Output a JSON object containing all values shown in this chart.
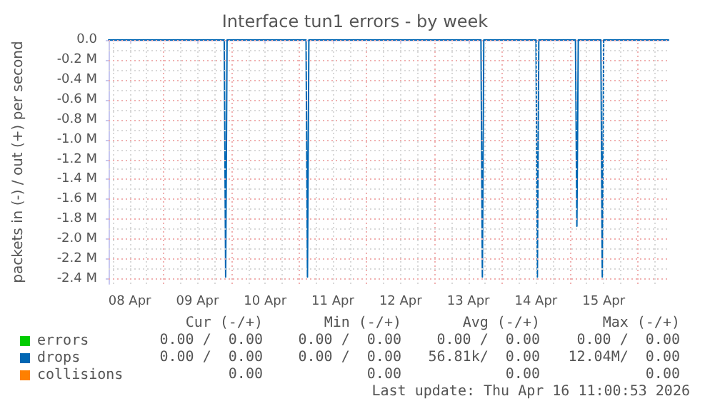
{
  "chart_data": {
    "type": "line",
    "title": "Interface tun1 errors - by week",
    "ylabel": "packets in (-) / out (+) per second",
    "xlim": [
      "2026-04-08T04:30",
      "2026-04-16T11:00"
    ],
    "ylim": [
      -2450000,
      0
    ],
    "xticks": [
      {
        "value": "2026-04-08T06:00",
        "label": null
      },
      {
        "value": "2026-04-08T12:00",
        "label": "08 Apr"
      },
      {
        "value": "2026-04-08T18:00",
        "label": null
      },
      {
        "value": "2026-04-09T00:00",
        "label": null
      },
      {
        "value": "2026-04-09T06:00",
        "label": null
      },
      {
        "value": "2026-04-09T12:00",
        "label": "09 Apr"
      },
      {
        "value": "2026-04-09T18:00",
        "label": null
      },
      {
        "value": "2026-04-10T00:00",
        "label": null
      },
      {
        "value": "2026-04-10T06:00",
        "label": null
      },
      {
        "value": "2026-04-10T12:00",
        "label": "10 Apr"
      },
      {
        "value": "2026-04-10T18:00",
        "label": null
      },
      {
        "value": "2026-04-11T00:00",
        "label": null
      },
      {
        "value": "2026-04-11T06:00",
        "label": null
      },
      {
        "value": "2026-04-11T12:00",
        "label": "11 Apr"
      },
      {
        "value": "2026-04-11T18:00",
        "label": null
      },
      {
        "value": "2026-04-12T00:00",
        "label": null
      },
      {
        "value": "2026-04-12T06:00",
        "label": null
      },
      {
        "value": "2026-04-12T12:00",
        "label": "12 Apr"
      },
      {
        "value": "2026-04-12T18:00",
        "label": null
      },
      {
        "value": "2026-04-13T00:00",
        "label": null
      },
      {
        "value": "2026-04-13T06:00",
        "label": null
      },
      {
        "value": "2026-04-13T12:00",
        "label": "13 Apr"
      },
      {
        "value": "2026-04-13T18:00",
        "label": null
      },
      {
        "value": "2026-04-14T00:00",
        "label": null
      },
      {
        "value": "2026-04-14T06:00",
        "label": null
      },
      {
        "value": "2026-04-14T12:00",
        "label": "14 Apr"
      },
      {
        "value": "2026-04-14T18:00",
        "label": null
      },
      {
        "value": "2026-04-15T00:00",
        "label": null
      },
      {
        "value": "2026-04-15T06:00",
        "label": null
      },
      {
        "value": "2026-04-15T12:00",
        "label": "15 Apr"
      },
      {
        "value": "2026-04-15T18:00",
        "label": null
      },
      {
        "value": "2026-04-16T00:00",
        "label": null
      },
      {
        "value": "2026-04-16T06:00",
        "label": null
      }
    ],
    "yticks": [
      {
        "value": 0,
        "label": "0.0"
      },
      {
        "value": -100000,
        "label": null
      },
      {
        "value": -200000,
        "label": "-0.2 M"
      },
      {
        "value": -300000,
        "label": null
      },
      {
        "value": -400000,
        "label": "-0.4 M"
      },
      {
        "value": -500000,
        "label": null
      },
      {
        "value": -600000,
        "label": "-0.6 M"
      },
      {
        "value": -700000,
        "label": null
      },
      {
        "value": -800000,
        "label": "-0.8 M"
      },
      {
        "value": -900000,
        "label": null
      },
      {
        "value": -1000000,
        "label": "-1.0 M"
      },
      {
        "value": -1100000,
        "label": null
      },
      {
        "value": -1200000,
        "label": "-1.2 M"
      },
      {
        "value": -1300000,
        "label": null
      },
      {
        "value": -1400000,
        "label": "-1.4 M"
      },
      {
        "value": -1500000,
        "label": null
      },
      {
        "value": -1600000,
        "label": "-1.6 M"
      },
      {
        "value": -1700000,
        "label": null
      },
      {
        "value": -1800000,
        "label": "-1.8 M"
      },
      {
        "value": -1900000,
        "label": null
      },
      {
        "value": -2000000,
        "label": "-2.0 M"
      },
      {
        "value": -2100000,
        "label": null
      },
      {
        "value": -2200000,
        "label": "-2.2 M"
      },
      {
        "value": -2300000,
        "label": null
      },
      {
        "value": -2400000,
        "label": "-2.4 M"
      }
    ],
    "grid": true,
    "legend": "bottom left",
    "marker": "none",
    "line_style": "solid",
    "series": [
      {
        "name": "errors",
        "color": "#00cc00"
      },
      {
        "name": "drops",
        "color": "#0066b3",
        "x": [
          "2026-04-08T04:30",
          "2026-04-09T21:30",
          "2026-04-09T22:00",
          "2026-04-09T22:30",
          "2026-04-11T02:30",
          "2026-04-11T03:00",
          "2026-04-11T03:30",
          "2026-04-13T16:30",
          "2026-04-13T17:00",
          "2026-04-13T17:30",
          "2026-04-14T12:00",
          "2026-04-14T12:30",
          "2026-04-14T13:00",
          "2026-04-15T02:00",
          "2026-04-15T02:30",
          "2026-04-15T03:00",
          "2026-04-15T11:00",
          "2026-04-15T11:30",
          "2026-04-15T12:00",
          "2026-04-16T11:00"
        ],
        "values": [
          0,
          0,
          -2380000,
          0,
          0,
          -2380000,
          0,
          0,
          -2380000,
          0,
          0,
          -2380000,
          0,
          0,
          -1870000,
          0,
          0,
          -2380000,
          0,
          0
        ]
      },
      {
        "name": "collisions",
        "color": "#ff8000"
      }
    ],
    "annotations": [
      "Cur (-/+)",
      "Min (-/+)",
      "Avg (-/+)",
      "Max (-/+)",
      "0.00 /  0.00",
      "0.00 /  0.00",
      "0.00 /  0.00",
      "0.00 /  0.00",
      "0.00 /  0.00",
      "0.00 /  0.00",
      "56.81k/  0.00",
      "12.04M/  0.00",
      "0.00",
      "0.00",
      "0.00",
      "0.00",
      "Last update: Thu Apr 16 11:00:53 2026"
    ]
  }
}
